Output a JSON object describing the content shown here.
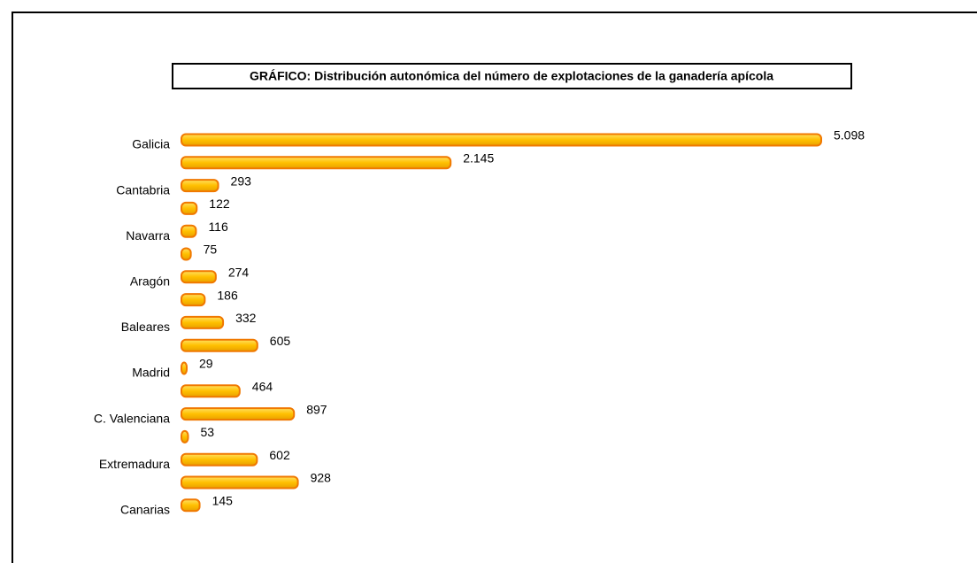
{
  "chart_data": {
    "type": "hbar",
    "title": "GRÁFICO: Distribución autonómica del número de explotaciones de la ganadería apícola",
    "categories": [
      "Galicia",
      null,
      "Cantabria",
      null,
      "Navarra",
      null,
      "Aragón",
      null,
      "Baleares",
      null,
      "Madrid",
      null,
      "C. Valenciana",
      null,
      "Extremadura",
      null,
      "Canarias"
    ],
    "values": [
      5098,
      2145,
      293,
      122,
      116,
      75,
      274,
      186,
      332,
      605,
      29,
      464,
      897,
      53,
      602,
      928,
      145
    ],
    "value_labels": [
      "5.098",
      "2.145",
      "293",
      "122",
      "116",
      "75",
      "274",
      "186",
      "332",
      "605",
      "29",
      "464",
      "897",
      "53",
      "602",
      "928",
      "145"
    ],
    "color": "#f07800"
  }
}
